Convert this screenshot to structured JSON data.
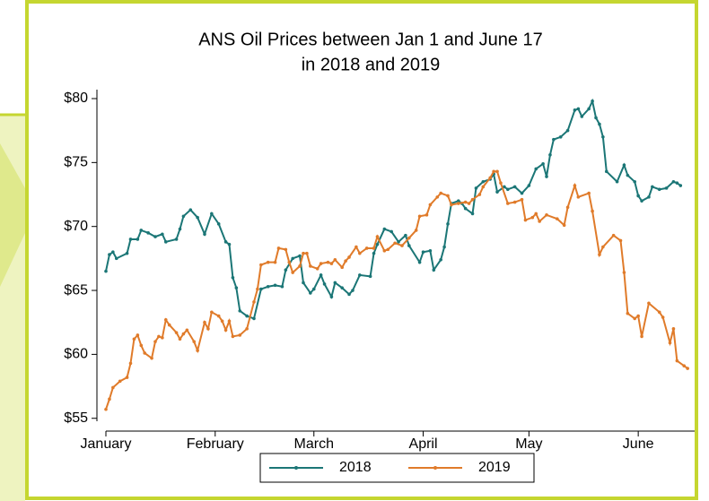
{
  "chart_data": {
    "type": "line",
    "title": [
      "ANS Oil Prices between Jan 1 and June 17",
      "in 2018 and 2019"
    ],
    "xlim": [
      1,
      168
    ],
    "ylim": [
      54,
      80
    ],
    "xticks": [
      {
        "value": 1,
        "label": "January"
      },
      {
        "value": 32,
        "label": "February"
      },
      {
        "value": 60,
        "label": "March"
      },
      {
        "value": 91,
        "label": "April"
      },
      {
        "value": 121,
        "label": "May"
      },
      {
        "value": 152,
        "label": "June"
      }
    ],
    "yticks": [
      {
        "value": 55,
        "label": "$55"
      },
      {
        "value": 60,
        "label": "$60"
      },
      {
        "value": 65,
        "label": "$65"
      },
      {
        "value": 70,
        "label": "$70"
      },
      {
        "value": 75,
        "label": "$75"
      },
      {
        "value": 80,
        "label": "$80"
      }
    ],
    "series": [
      {
        "name": "2018",
        "color": "#1b7676",
        "x": [
          1,
          2,
          3,
          4,
          7,
          8,
          10,
          11,
          13,
          15,
          17,
          18,
          21,
          22,
          23,
          25,
          27,
          29,
          31,
          33,
          35,
          36,
          37,
          38,
          39,
          41,
          43,
          45,
          47,
          49,
          51,
          52,
          54,
          56,
          57,
          59,
          60,
          62,
          63,
          65,
          66,
          68,
          70,
          71,
          73,
          76,
          77,
          78,
          80,
          82,
          84,
          86,
          87,
          90,
          91,
          93,
          94,
          96,
          97,
          98,
          99,
          101,
          102,
          103,
          105,
          106,
          108,
          110,
          111,
          112,
          114,
          115,
          117,
          119,
          121,
          123,
          125,
          126,
          127,
          128,
          130,
          132,
          134,
          135,
          136,
          138,
          139,
          140,
          141,
          142,
          143,
          146,
          148,
          149,
          151,
          152,
          153,
          155,
          156,
          158,
          160,
          162,
          163,
          164
        ],
        "values": [
          66.5,
          67.8,
          68,
          67.5,
          67.9,
          69,
          69,
          69.7,
          69.5,
          69.2,
          69.4,
          68.8,
          69,
          69.8,
          70.8,
          71.3,
          70.7,
          69.4,
          71,
          70.2,
          68.8,
          68.6,
          66,
          65.2,
          63.4,
          63,
          62.8,
          65.1,
          65.3,
          65.4,
          65.3,
          66.6,
          67.5,
          67.7,
          65.6,
          64.8,
          65.1,
          66.2,
          65.5,
          64.5,
          65.6,
          65.2,
          64.7,
          65,
          66.2,
          66.1,
          67.9,
          68.6,
          69.8,
          69.6,
          68.8,
          69.3,
          68.5,
          67.2,
          68,
          68.1,
          66.6,
          67.4,
          68.4,
          70.2,
          71.8,
          72,
          71.8,
          71.4,
          71,
          73,
          73.5,
          73.7,
          74.1,
          72.7,
          73.1,
          72.9,
          73.1,
          72.6,
          73.2,
          74.5,
          74.9,
          73.9,
          75.6,
          76.8,
          77,
          77.5,
          79.1,
          79.2,
          78.6,
          79.2,
          79.8,
          78.5,
          78,
          77,
          74.3,
          73.5,
          74.8,
          74,
          73.5,
          72.4,
          72,
          72.3,
          73.1,
          72.9,
          73,
          73.5,
          73.4,
          73.2
        ]
      },
      {
        "name": "2019",
        "color": "#e07b2a",
        "x": [
          1,
          2,
          3,
          5,
          7,
          8,
          9,
          10,
          11,
          12,
          14,
          15,
          16,
          17,
          18,
          19,
          21,
          22,
          23,
          24,
          26,
          27,
          29,
          30,
          31,
          33,
          34,
          35,
          36,
          37,
          39,
          41,
          43,
          44,
          45,
          47,
          49,
          50,
          52,
          53,
          54,
          56,
          57,
          58,
          59,
          61,
          62,
          64,
          65,
          66,
          68,
          69,
          70,
          72,
          73,
          75,
          77,
          78,
          80,
          81,
          83,
          85,
          87,
          89,
          90,
          92,
          93,
          95,
          96,
          98,
          99,
          101,
          103,
          104,
          105,
          107,
          108,
          110,
          111,
          112,
          113,
          115,
          117,
          119,
          120,
          122,
          123,
          124,
          126,
          129,
          131,
          132,
          134,
          135,
          138,
          139,
          141,
          142,
          145,
          147,
          148,
          149,
          151,
          152,
          153,
          155,
          158,
          159,
          161,
          162,
          163,
          165,
          166
        ],
        "values": [
          55.7,
          56.5,
          57.4,
          57.9,
          58.2,
          59.3,
          61.2,
          61.5,
          60.7,
          60.1,
          59.7,
          61,
          61.4,
          61.3,
          62.7,
          62.3,
          61.7,
          61.2,
          61.6,
          61.9,
          61,
          60.3,
          62.5,
          62,
          63.3,
          63,
          62.6,
          61.9,
          62.6,
          61.4,
          61.5,
          62,
          64.1,
          65.1,
          67,
          67.2,
          67.2,
          68.3,
          68.2,
          67.2,
          66.4,
          66.9,
          67.9,
          67.9,
          66.9,
          66.7,
          67.1,
          67.2,
          67.1,
          67.4,
          66.8,
          67.3,
          67.6,
          68.4,
          67.9,
          68.3,
          68.3,
          69.2,
          68.1,
          68.2,
          68.7,
          68.5,
          69.1,
          69.7,
          70.8,
          70.9,
          71.7,
          72.3,
          72.6,
          72.4,
          71.7,
          71.8,
          71.9,
          71.8,
          72.1,
          72.5,
          73.1,
          73.8,
          74.3,
          74.3,
          73.4,
          71.8,
          71.9,
          72.1,
          70.5,
          70.7,
          71,
          70.4,
          70.9,
          70.6,
          70.1,
          71.5,
          73.2,
          72.3,
          72.6,
          71.2,
          67.8,
          68.4,
          69.3,
          68.9,
          66.4,
          63.2,
          62.8,
          63,
          61.4,
          64,
          63.3,
          62.9,
          60.9,
          62,
          59.5,
          59.1,
          58.9
        ]
      }
    ]
  }
}
